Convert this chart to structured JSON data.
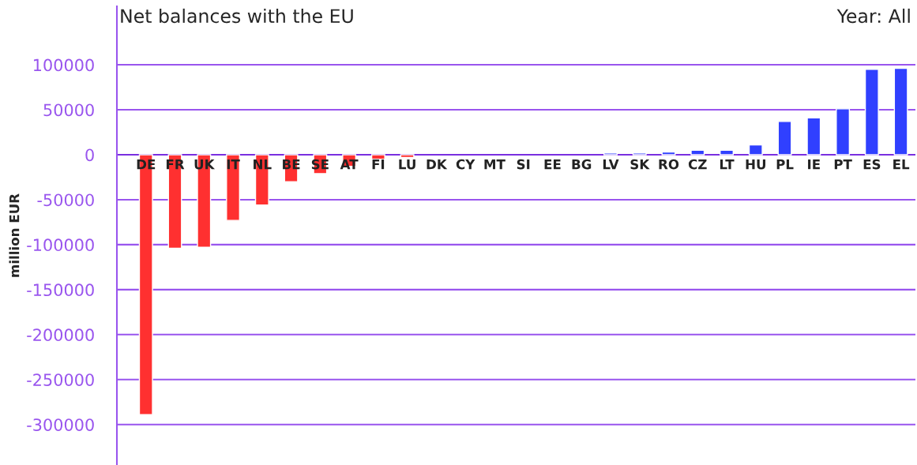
{
  "chart_data": {
    "type": "bar",
    "title": "Net balances with the EU",
    "ylabel": "million EUR",
    "annotations": [
      "Year: All"
    ],
    "categories": [
      "DE",
      "FR",
      "UK",
      "IT",
      "NL",
      "BE",
      "SE",
      "AT",
      "FI",
      "LU",
      "DK",
      "CY",
      "MT",
      "SI",
      "EE",
      "BG",
      "LV",
      "SK",
      "RO",
      "CZ",
      "LT",
      "HU",
      "PL",
      "IE",
      "PT",
      "ES",
      "EL"
    ],
    "values": [
      -289000,
      -104000,
      -103000,
      -73000,
      -56000,
      -30000,
      -21000,
      -13000,
      -5000,
      -3000,
      null,
      null,
      null,
      null,
      null,
      null,
      2000,
      2000,
      3000,
      5000,
      5000,
      11000,
      37000,
      41000,
      51000,
      95000,
      96000
    ],
    "colors": [
      "#ff3030",
      "#ff3030",
      "#ff3030",
      "#ff3030",
      "#ff3030",
      "#ff3030",
      "#ff3030",
      "#ff3030",
      "#ff3030",
      "#ff3030",
      null,
      null,
      null,
      null,
      null,
      null,
      "#3040ff",
      "#3040ff",
      "#3040ff",
      "#3040ff",
      "#3040ff",
      "#3040ff",
      "#3040ff",
      "#3040ff",
      "#3040ff",
      "#3040ff",
      "#3040ff"
    ],
    "ylim": [
      -345000,
      165000
    ],
    "yticks": [
      -300000,
      -250000,
      -200000,
      -150000,
      -100000,
      -50000,
      0,
      50000,
      100000
    ],
    "grid": "y",
    "legend": false
  }
}
